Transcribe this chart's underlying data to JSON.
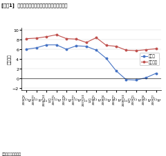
{
  "title": "[図表1]  日本の製造業と非製造業の利益額の推移",
  "ylabel": "（兆円）",
  "source": "資料：法人企業統計",
  "legend_manufacturing": "製造業",
  "legend_non_manufacturing": "非製造業",
  "xlabels": [
    "6月",
    "9月",
    "12月",
    "3月",
    "6月",
    "9月",
    "12月",
    "3月",
    "6月",
    "9月",
    "12月",
    "3月",
    "6月",
    "9月"
  ],
  "xgrouplabels": [
    "2006年4\n～",
    "2006年7\n～",
    "2006年10\n～",
    "2007年1\n～",
    "2007年4\n～",
    "2007年7\n～",
    "2007年10\n～",
    "2008年1\n～",
    "2008年4\n～",
    "2008年7\n～",
    "2008年10\n～",
    "2009年1\n～",
    "2009年4\n～",
    "2009年7\n～"
  ],
  "manufacturing": [
    6.0,
    6.3,
    6.9,
    6.9,
    6.0,
    6.7,
    6.6,
    5.8,
    4.1,
    1.5,
    -0.3,
    -0.4,
    0.1,
    1.0
  ],
  "non_manufacturing": [
    8.2,
    8.3,
    8.6,
    9.0,
    8.2,
    8.1,
    7.4,
    8.4,
    6.8,
    6.6,
    5.8,
    5.7,
    5.9,
    6.1
  ],
  "manufacturing_color": "#4472c4",
  "non_manufacturing_color": "#c0504d",
  "ylim": [
    -2.5,
    10.5
  ],
  "yticks": [
    -2,
    0,
    2,
    4,
    6,
    8,
    10
  ],
  "background_color": "#ffffff",
  "grid_color": "#d0d0d0"
}
